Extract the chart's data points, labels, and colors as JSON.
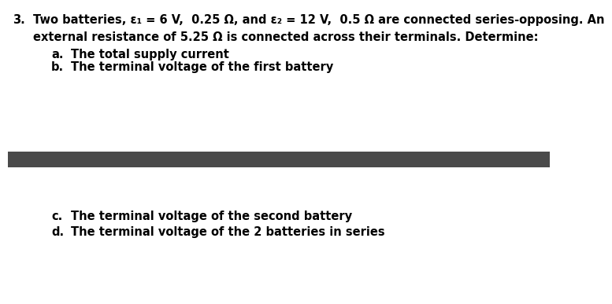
{
  "number": "3.",
  "line1": "Two batteries, ε₁ = 6 V,  0.25 Ω, and ε₂ = 12 V,  0.5 Ω are connected series-opposing. An",
  "line2": "external resistance of 5.25 Ω is connected across their terminals. Determine:",
  "item_a_label": "a.",
  "item_a_text": "The total supply current",
  "item_b_label": "b.",
  "item_b_text": "The terminal voltage of the first battery",
  "item_c_label": "c.",
  "item_c_text": "The terminal voltage of the second battery",
  "item_d_label": "d.",
  "item_d_text": "The terminal voltage of the 2 batteries in series",
  "divider_color": "#4a4a4a",
  "bg_color": "#ffffff",
  "text_color": "#000000",
  "font_size": 10.5,
  "label_font_size": 10.5
}
